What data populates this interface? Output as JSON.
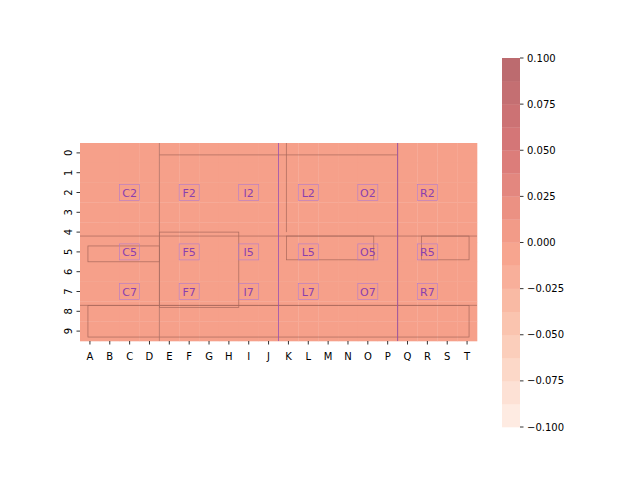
{
  "chart_data": {
    "type": "heatmap",
    "x_labels": [
      "A",
      "B",
      "C",
      "D",
      "E",
      "F",
      "G",
      "H",
      "I",
      "J",
      "K",
      "L",
      "M",
      "N",
      "O",
      "P",
      "Q",
      "R",
      "S",
      "T"
    ],
    "y_labels": [
      0,
      1,
      2,
      3,
      4,
      5,
      6,
      7,
      8,
      9
    ],
    "cells": [
      [
        0,
        0,
        0,
        0,
        0,
        0,
        0,
        0,
        0,
        0,
        0,
        0,
        0,
        0,
        0,
        0,
        0,
        0,
        0,
        0
      ],
      [
        0,
        0,
        0,
        0,
        0,
        0,
        0,
        0,
        0,
        0,
        0,
        0,
        0,
        0,
        0,
        0,
        0,
        0,
        0,
        0
      ],
      [
        0,
        0,
        0,
        0,
        0,
        0,
        0,
        0,
        0,
        0,
        0,
        0,
        0,
        0,
        0,
        0,
        0,
        0,
        0,
        0
      ],
      [
        0,
        0,
        0,
        0,
        0,
        0,
        0,
        0,
        0,
        0,
        0,
        0,
        0,
        0,
        0,
        0,
        0,
        0,
        0,
        0
      ],
      [
        0,
        0,
        0,
        0,
        0,
        0,
        0,
        0,
        0,
        0,
        0,
        0,
        0,
        0,
        0,
        0,
        0,
        0,
        0,
        0
      ],
      [
        0,
        0,
        0,
        0,
        0,
        0,
        0,
        0,
        0,
        0,
        0,
        0,
        0,
        0,
        0,
        0,
        0,
        0,
        0,
        0
      ],
      [
        0,
        0,
        0,
        0,
        0,
        0,
        0,
        0,
        0,
        0,
        0,
        0,
        0,
        0,
        0,
        0,
        0,
        0,
        0,
        0
      ],
      [
        0,
        0,
        0,
        0,
        0,
        0,
        0,
        0,
        0,
        0,
        0,
        0,
        0,
        0,
        0,
        0,
        0,
        0,
        0,
        0
      ],
      [
        0,
        0,
        0,
        0,
        0,
        0,
        0,
        0,
        0,
        0,
        0,
        0,
        0,
        0,
        0,
        0,
        0,
        0,
        0,
        0
      ],
      [
        0,
        0,
        0,
        0,
        0,
        0,
        0,
        0,
        0,
        0,
        0,
        0,
        0,
        0,
        0,
        0,
        0,
        0,
        0,
        0
      ]
    ],
    "colorbar": {
      "range": [
        -0.1,
        0.1
      ],
      "ticks": [
        {
          "value": -0.1,
          "label": "−0.100"
        },
        {
          "value": -0.075,
          "label": "−0.075"
        },
        {
          "value": -0.05,
          "label": "−0.050"
        },
        {
          "value": -0.025,
          "label": "−0.025"
        },
        {
          "value": 0,
          "label": "0.000"
        },
        0.025,
        {
          "value": 0.05,
          "label": "0.050"
        },
        0.075,
        {
          "value": 0.1,
          "label": "0.100"
        }
      ]
    },
    "annotations": [
      {
        "text": "C2",
        "x": 2,
        "y": 2
      },
      {
        "text": "F2",
        "x": 5,
        "y": 2
      },
      {
        "text": "I2",
        "x": 8,
        "y": 2
      },
      {
        "text": "L2",
        "x": 11,
        "y": 2
      },
      {
        "text": "O2",
        "x": 14,
        "y": 2
      },
      {
        "text": "R2",
        "x": 17,
        "y": 2
      },
      {
        "text": "C5",
        "x": 2,
        "y": 5
      },
      {
        "text": "F5",
        "x": 5,
        "y": 5
      },
      {
        "text": "I5",
        "x": 8,
        "y": 5
      },
      {
        "text": "L5",
        "x": 11,
        "y": 5
      },
      {
        "text": "O5",
        "x": 14,
        "y": 5
      },
      {
        "text": "R5",
        "x": 17,
        "y": 5
      },
      {
        "text": "C7",
        "x": 2,
        "y": 7
      },
      {
        "text": "F7",
        "x": 5,
        "y": 7
      },
      {
        "text": "I7",
        "x": 8,
        "y": 7
      },
      {
        "text": "L7",
        "x": 11,
        "y": 7
      },
      {
        "text": "O7",
        "x": 14,
        "y": 7
      },
      {
        "text": "R7",
        "x": 17,
        "y": 7
      }
    ]
  }
}
